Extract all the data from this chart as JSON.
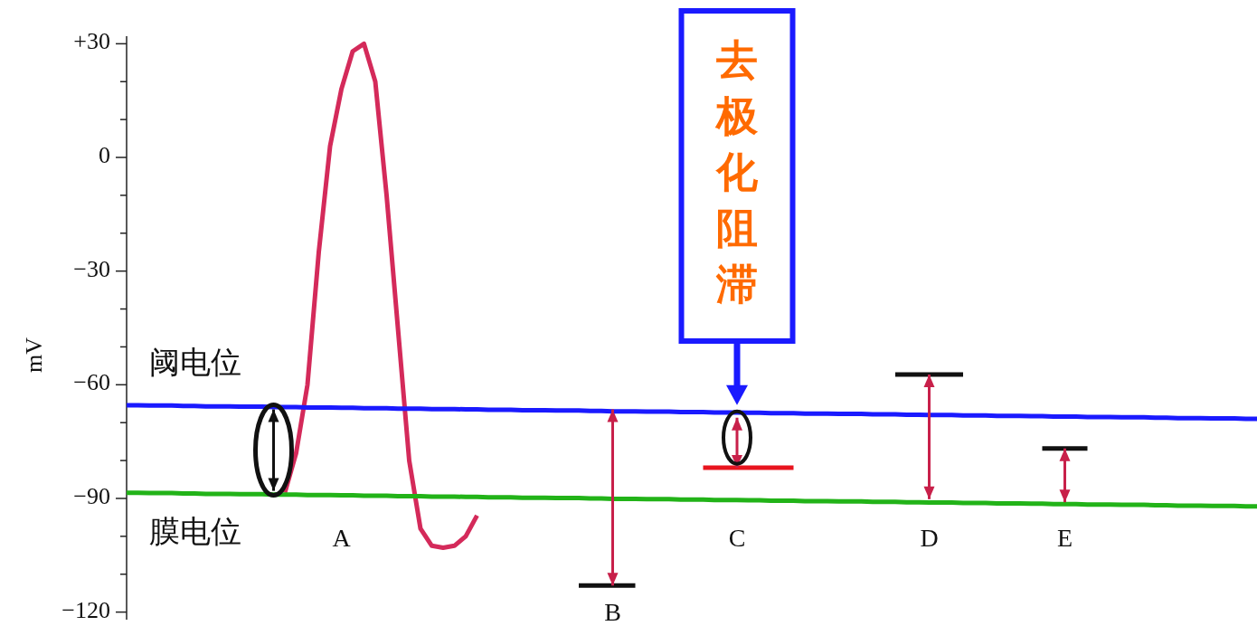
{
  "chart_data": {
    "type": "line",
    "ylabel": "mV",
    "ylim": [
      -122,
      32
    ],
    "yticks": [
      {
        "value": -120,
        "label": "−120"
      },
      {
        "value": -110,
        "label": null
      },
      {
        "value": -100,
        "label": null
      },
      {
        "value": -90,
        "label": "−90"
      },
      {
        "value": -80,
        "label": null
      },
      {
        "value": -70,
        "label": null
      },
      {
        "value": -60,
        "label": "−60"
      },
      {
        "value": -50,
        "label": null
      },
      {
        "value": -40,
        "label": null
      },
      {
        "value": -30,
        "label": "−30"
      },
      {
        "value": -20,
        "label": null
      },
      {
        "value": -10,
        "label": null
      },
      {
        "value": 0,
        "label": "0"
      },
      {
        "value": 10,
        "label": null
      },
      {
        "value": 20,
        "label": null
      },
      {
        "value": 30,
        "label": "+30"
      }
    ],
    "categories": [
      null,
      null,
      null,
      null,
      null,
      null,
      null,
      null,
      null,
      null,
      null,
      null,
      null,
      null,
      null,
      null,
      null,
      null,
      null,
      "A",
      null,
      null,
      null,
      null,
      null,
      null,
      null,
      null,
      null,
      null,
      null,
      null,
      null,
      null,
      null,
      null,
      null,
      null,
      null,
      null,
      null,
      null,
      null,
      "B",
      null,
      null,
      null,
      null,
      null,
      null,
      null,
      null,
      null,
      null,
      "C",
      null,
      null,
      null,
      null,
      null,
      null,
      null,
      null,
      null,
      null,
      null,
      null,
      null,
      null,
      null,
      null,
      "D",
      null,
      null,
      null,
      null,
      null,
      null,
      null,
      null,
      null,
      null,
      null,
      "E",
      null,
      null,
      null,
      null,
      null,
      null,
      null,
      null,
      null,
      null,
      null,
      null,
      null,
      null,
      null,
      null,
      null
    ],
    "series": [
      {
        "color": "#d42a5a",
        "values": [
          null,
          null,
          null,
          null,
          null,
          null,
          null,
          null,
          null,
          null,
          null,
          null,
          null,
          null,
          -88.5,
          -78,
          -60,
          -25,
          3,
          18,
          28,
          30,
          20,
          -10,
          -45,
          -80,
          -98,
          -102.5,
          -103,
          -102.5,
          -100,
          -94.5,
          null,
          null,
          null,
          null,
          null,
          null,
          null,
          null,
          null,
          null,
          null,
          null,
          null,
          null,
          null,
          null,
          null,
          null,
          null,
          null,
          null,
          null,
          null,
          null,
          null,
          null,
          null,
          null,
          null,
          null,
          null,
          null,
          null,
          null,
          null,
          null,
          null,
          null,
          null,
          null,
          null,
          null,
          null,
          null,
          null,
          null,
          null,
          null,
          null,
          null,
          null,
          null,
          null,
          null,
          null,
          null,
          null,
          null,
          null,
          null,
          null,
          null,
          null,
          null,
          null,
          null,
          null,
          null,
          null
        ]
      },
      {
        "color": "#1a1aff",
        "values": [
          -65.4,
          -65.4,
          -65.5,
          -65.5,
          -65.5,
          -65.6,
          -65.6,
          -65.7,
          -65.7,
          -65.7,
          -65.8,
          -65.8,
          -65.8,
          -65.9,
          -65.9,
          -65.9,
          -66.0,
          -66.0,
          -66.0,
          -66.1,
          -66.1,
          -66.2,
          -66.2,
          -66.2,
          -66.3,
          -66.3,
          -66.3,
          -66.4,
          -66.4,
          -66.4,
          -66.5,
          -66.5,
          -66.6,
          -66.6,
          -66.6,
          -66.7,
          -66.7,
          -66.7,
          -66.8,
          -66.8,
          -66.8,
          -66.9,
          -66.9,
          -67.0,
          -67.0,
          -67.0,
          -67.1,
          -67.1,
          -67.1,
          -67.2,
          -67.2,
          -67.2,
          -67.3,
          -67.3,
          -67.3,
          -67.4,
          -67.4,
          -67.5,
          -67.5,
          -67.5,
          -67.6,
          -67.6,
          -67.6,
          -67.7,
          -67.7,
          -67.7,
          -67.8,
          -67.8,
          -67.8,
          -67.9,
          -67.9,
          -68.0,
          -68.0,
          -68.0,
          -68.1,
          -68.1,
          -68.1,
          -68.2,
          -68.2,
          -68.2,
          -68.3,
          -68.3,
          -68.4,
          -68.4,
          -68.4,
          -68.5,
          -68.5,
          -68.5,
          -68.6,
          -68.6,
          -68.6,
          -68.7,
          -68.7,
          -68.8,
          -68.8,
          -68.8,
          -68.9,
          -68.9,
          -68.9,
          -69.0,
          -69.0
        ]
      },
      {
        "color": "#22b318",
        "values": [
          -88.5,
          -88.5,
          -88.6,
          -88.6,
          -88.6,
          -88.7,
          -88.7,
          -88.8,
          -88.8,
          -88.8,
          -88.9,
          -88.9,
          -88.9,
          -89.0,
          -89.0,
          -89.0,
          -89.1,
          -89.1,
          -89.1,
          -89.2,
          -89.2,
          -89.3,
          -89.3,
          -89.3,
          -89.4,
          -89.4,
          -89.4,
          -89.5,
          -89.5,
          -89.5,
          -89.6,
          -89.6,
          -89.7,
          -89.7,
          -89.7,
          -89.8,
          -89.8,
          -89.8,
          -89.9,
          -89.9,
          -89.9,
          -90.0,
          -90.0,
          -90.1,
          -90.1,
          -90.1,
          -90.2,
          -90.2,
          -90.2,
          -90.3,
          -90.3,
          -90.3,
          -90.4,
          -90.4,
          -90.4,
          -90.5,
          -90.5,
          -90.6,
          -90.6,
          -90.6,
          -90.7,
          -90.7,
          -90.7,
          -90.8,
          -90.8,
          -90.8,
          -90.9,
          -90.9,
          -90.9,
          -91.0,
          -91.0,
          -91.1,
          -91.1,
          -91.1,
          -91.2,
          -91.2,
          -91.2,
          -91.3,
          -91.3,
          -91.3,
          -91.4,
          -91.4,
          -91.5,
          -91.5,
          -91.5,
          -91.6,
          -91.6,
          -91.6,
          -91.7,
          -91.7,
          -91.7,
          -91.8,
          -91.8,
          -91.9,
          -91.9,
          -91.9,
          -92.0,
          -92.0,
          -92.0,
          -92.1,
          -92.1
        ]
      },
      {
        "color": "#111111",
        "values": [
          null,
          null,
          null,
          null,
          null,
          null,
          null,
          null,
          null,
          null,
          null,
          null,
          null,
          null,
          null,
          null,
          null,
          null,
          null,
          null,
          null,
          null,
          null,
          null,
          null,
          null,
          null,
          null,
          null,
          null,
          null,
          null,
          null,
          null,
          null,
          null,
          null,
          null,
          null,
          null,
          -113,
          -113,
          -113,
          -113,
          -113,
          -113,
          null,
          null,
          null,
          null,
          null,
          null,
          null,
          null,
          null,
          null,
          null,
          null,
          null,
          null,
          null,
          null,
          null,
          null,
          null,
          null,
          null,
          null,
          -57.3,
          -57.3,
          -57.3,
          -57.3,
          -57.3,
          -57.3,
          -57.3,
          null,
          null,
          null,
          null,
          null,
          null,
          -76.8,
          -76.8,
          -76.8,
          -76.8,
          -76.8,
          null,
          null,
          null,
          null,
          null,
          null,
          null,
          null,
          null,
          null,
          null,
          null,
          null,
          null,
          null
        ]
      },
      {
        "color": "#e8141e",
        "values": [
          null,
          null,
          null,
          null,
          null,
          null,
          null,
          null,
          null,
          null,
          null,
          null,
          null,
          null,
          null,
          null,
          null,
          null,
          null,
          null,
          null,
          null,
          null,
          null,
          null,
          null,
          null,
          null,
          null,
          null,
          null,
          null,
          null,
          null,
          null,
          null,
          null,
          null,
          null,
          null,
          null,
          null,
          null,
          null,
          null,
          null,
          null,
          null,
          null,
          null,
          null,
          -81.9,
          -81.9,
          -81.9,
          -81.9,
          -81.9,
          -81.9,
          -81.9,
          -81.9,
          -81.9,
          null,
          null,
          null,
          null,
          null,
          null,
          null,
          null,
          null,
          null,
          null,
          null,
          null,
          null,
          null,
          null,
          null,
          null,
          null,
          null,
          null,
          null,
          null,
          null,
          null,
          null,
          null,
          null,
          null,
          null,
          null,
          null,
          null,
          null,
          null,
          null,
          null,
          null,
          null,
          null,
          null
        ]
      },
      {
        "type": "bar",
        "color": "#111111",
        "values": [
          null,
          null,
          null,
          null,
          null,
          null,
          null,
          null,
          null,
          null,
          null,
          null,
          null,
          21.5,
          null,
          null,
          null,
          null,
          null,
          null,
          null,
          null,
          null,
          null,
          null,
          null,
          null,
          null,
          null,
          null,
          null,
          null,
          null,
          null,
          null,
          null,
          null,
          null,
          null,
          null,
          null,
          null,
          null,
          null,
          null,
          null,
          null,
          null,
          null,
          null,
          null,
          null,
          null,
          null,
          null,
          null,
          null,
          null,
          null,
          null,
          null,
          null,
          null,
          null,
          null,
          null,
          null,
          null,
          null,
          null,
          null,
          null,
          null,
          null,
          null,
          null,
          null,
          null,
          null,
          null,
          null,
          null,
          null,
          null,
          null,
          null,
          null,
          null,
          null,
          null,
          null,
          null,
          null,
          null,
          null,
          null,
          null,
          null,
          null,
          null,
          null
        ],
        "base": [
          null,
          null,
          null,
          null,
          null,
          null,
          null,
          null,
          null,
          null,
          null,
          null,
          null,
          -88,
          null,
          null,
          null,
          null,
          null,
          null,
          null,
          null,
          null,
          null,
          null,
          null,
          null,
          null,
          null,
          null,
          null,
          null,
          null,
          null,
          null,
          null,
          null,
          null,
          null,
          null,
          null,
          null,
          null,
          null,
          null,
          null,
          null,
          null,
          null,
          null,
          null,
          null,
          null,
          null,
          null,
          null,
          null,
          null,
          null,
          null,
          null,
          null,
          null,
          null,
          null,
          null,
          null,
          null,
          null,
          null,
          null,
          null,
          null,
          null,
          null,
          null,
          null,
          null,
          null,
          null,
          null,
          null,
          null,
          null,
          null,
          null,
          null,
          null,
          null,
          null,
          null,
          null,
          null,
          null,
          null,
          null,
          null,
          null,
          null,
          null,
          null
        ]
      },
      {
        "type": "bar",
        "color": "#c8204a",
        "values": [
          null,
          null,
          null,
          null,
          null,
          null,
          null,
          null,
          null,
          null,
          null,
          null,
          null,
          null,
          null,
          null,
          null,
          null,
          null,
          null,
          null,
          null,
          null,
          null,
          null,
          null,
          null,
          null,
          null,
          null,
          null,
          null,
          null,
          null,
          null,
          null,
          null,
          null,
          null,
          null,
          null,
          null,
          null,
          46.5,
          null,
          null,
          null,
          null,
          null,
          null,
          null,
          null,
          null,
          null,
          13.2,
          null,
          null,
          null,
          null,
          null,
          null,
          null,
          null,
          null,
          null,
          null,
          null,
          null,
          null,
          null,
          null,
          32.9,
          null,
          null,
          null,
          null,
          null,
          null,
          null,
          null,
          null,
          null,
          null,
          14.2,
          null,
          null,
          null,
          null,
          null,
          null,
          null,
          null,
          null,
          null,
          null,
          null,
          null,
          null,
          null,
          null,
          null
        ],
        "base": [
          null,
          null,
          null,
          null,
          null,
          null,
          null,
          null,
          null,
          null,
          null,
          null,
          null,
          null,
          null,
          null,
          null,
          null,
          null,
          null,
          null,
          null,
          null,
          null,
          null,
          null,
          null,
          null,
          null,
          null,
          null,
          null,
          null,
          null,
          null,
          null,
          null,
          null,
          null,
          null,
          null,
          null,
          null,
          -113,
          null,
          null,
          null,
          null,
          null,
          null,
          null,
          null,
          null,
          null,
          -81.9,
          null,
          null,
          null,
          null,
          null,
          null,
          null,
          null,
          null,
          null,
          null,
          null,
          null,
          null,
          null,
          null,
          -90.2,
          null,
          null,
          null,
          null,
          null,
          null,
          null,
          null,
          null,
          null,
          null,
          -91,
          null,
          null,
          null,
          null,
          null,
          null,
          null,
          null,
          null,
          null,
          null,
          null,
          null,
          null,
          null,
          null,
          null
        ]
      }
    ],
    "annotations": [
      "阈电位",
      "膜电位",
      {
        "text": "去极化阻滞",
        "x": "C",
        "y": -68.7
      }
    ]
  }
}
